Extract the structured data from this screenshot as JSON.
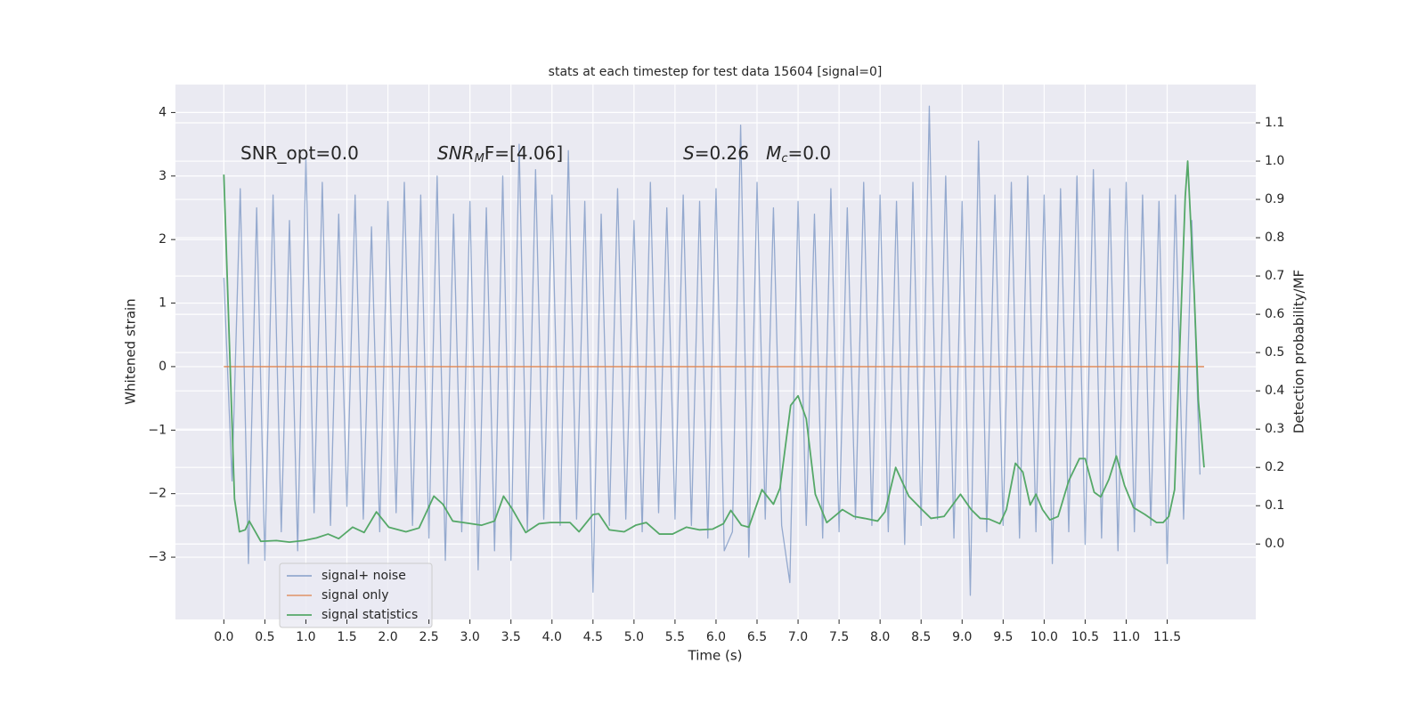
{
  "chart_data": {
    "type": "line",
    "title": "stats at each timestep for test data 15604 [signal=0]",
    "xlabel": "Time (s)",
    "ylabel": "Whitened strain",
    "y2label": "Detection probability/MF",
    "annotations": [
      {
        "parts": [
          "SNR_opt=0.0"
        ]
      },
      {
        "parts": [
          "SNR",
          "M",
          "F=[4.06]"
        ]
      },
      {
        "parts": [
          "S",
          "=0.26   ",
          "M",
          "c",
          "=0.0"
        ]
      }
    ],
    "xlim": [
      -0.59,
      12.58
    ],
    "ylim": [
      -3.98,
      4.44
    ],
    "y2lim": [
      -0.197,
      1.2
    ],
    "xticks": [
      {
        "value": 0,
        "label": "0.0"
      },
      0.5,
      {
        "value": 1,
        "label": "1.0"
      },
      1.5,
      {
        "value": 2,
        "label": "2.0"
      },
      2.5,
      {
        "value": 3,
        "label": "3.0"
      },
      3.5,
      {
        "value": 4,
        "label": "4.0"
      },
      4.5,
      {
        "value": 5,
        "label": "5.0"
      },
      5.5,
      {
        "value": 6,
        "label": "6.0"
      },
      6.5,
      {
        "value": 7,
        "label": "7.0"
      },
      7.5,
      {
        "value": 8,
        "label": "8.0"
      },
      8.5,
      {
        "value": 9,
        "label": "9.0"
      },
      9.5,
      {
        "value": 10,
        "label": "10.0"
      },
      10.5,
      {
        "value": 11,
        "label": "11.0"
      },
      11.5
    ],
    "yticks": [
      {
        "value": -3,
        "label": "−3"
      },
      {
        "value": -2,
        "label": "−2"
      },
      {
        "value": -1,
        "label": "−1"
      },
      0,
      1,
      2,
      3,
      4
    ],
    "y2ticks": [
      {
        "value": 0,
        "label": "0.0"
      },
      0.1,
      0.2,
      0.3,
      0.4,
      0.5,
      0.6,
      0.7,
      0.8,
      0.9,
      {
        "value": 1,
        "label": "1.0"
      },
      1.1
    ],
    "grid": true,
    "legend": "lower left",
    "series": [
      {
        "name": "signal+ noise",
        "color": "#4c72b0",
        "x": [
          0.0,
          0.1,
          0.2,
          0.3,
          0.4,
          0.5,
          0.6,
          0.7,
          0.8,
          0.9,
          1.0,
          1.1,
          1.2,
          1.3,
          1.4,
          1.5,
          1.6,
          1.7,
          1.8,
          1.9,
          2.0,
          2.1,
          2.2,
          2.3,
          2.4,
          2.5,
          2.6,
          2.7,
          2.8,
          2.9,
          3.0,
          3.1,
          3.2,
          3.3,
          3.4,
          3.5,
          3.6,
          3.7,
          3.8,
          3.9,
          4.0,
          4.1,
          4.2,
          4.3,
          4.4,
          4.5,
          4.6,
          4.7,
          4.8,
          4.9,
          5.0,
          5.1,
          5.2,
          5.3,
          5.4,
          5.5,
          5.6,
          5.7,
          5.8,
          5.9,
          6.0,
          6.1,
          6.2,
          6.3,
          6.4,
          6.5,
          6.6,
          6.7,
          6.8,
          6.9,
          7.0,
          7.1,
          7.2,
          7.3,
          7.4,
          7.5,
          7.6,
          7.7,
          7.8,
          7.9,
          8.0,
          8.1,
          8.2,
          8.3,
          8.4,
          8.5,
          8.6,
          8.7,
          8.8,
          8.9,
          9.0,
          9.1,
          9.2,
          9.3,
          9.4,
          9.5,
          9.6,
          9.7,
          9.8,
          9.9,
          10.0,
          10.1,
          10.2,
          10.3,
          10.4,
          10.5,
          10.6,
          10.7,
          10.8,
          10.9,
          11.0,
          11.1,
          11.2,
          11.3,
          11.4,
          11.5,
          11.6,
          11.7,
          11.8,
          11.9
        ],
        "values": [
          1.4,
          -1.8,
          2.8,
          -3.1,
          2.5,
          -3.05,
          2.7,
          -2.6,
          2.3,
          -2.9,
          3.3,
          -2.3,
          2.9,
          -2.5,
          2.4,
          -2.2,
          2.7,
          -2.4,
          2.2,
          -2.6,
          2.6,
          -2.3,
          2.9,
          -2.5,
          2.7,
          -2.7,
          3.0,
          -3.05,
          2.4,
          -2.6,
          2.6,
          -3.2,
          2.5,
          -2.9,
          3.0,
          -3.05,
          3.5,
          -2.6,
          3.1,
          -2.4,
          2.7,
          -2.5,
          3.4,
          -2.4,
          2.6,
          -3.55,
          2.4,
          -2.5,
          2.8,
          -2.4,
          2.3,
          -2.6,
          2.9,
          -2.3,
          2.5,
          -2.4,
          2.7,
          -2.5,
          2.6,
          -2.7,
          2.8,
          -2.9,
          -2.6,
          3.8,
          -3.0,
          2.9,
          -2.4,
          2.5,
          -2.5,
          -3.4,
          2.6,
          -2.5,
          2.4,
          -2.7,
          2.8,
          -2.6,
          2.5,
          -2.4,
          2.9,
          -2.5,
          2.7,
          -2.6,
          2.6,
          -2.8,
          2.9,
          -2.5,
          4.1,
          -2.4,
          3.0,
          -2.7,
          2.6,
          -3.6,
          3.55,
          -2.6,
          2.7,
          -2.5,
          2.9,
          -2.7,
          3.0,
          -2.6,
          2.7,
          -3.1,
          2.8,
          -2.6,
          3.0,
          -2.8,
          3.1,
          -2.7,
          2.8,
          -2.9,
          2.9,
          -2.6,
          2.7,
          -2.5,
          2.6,
          -3.1,
          2.7,
          -2.4,
          2.3,
          -1.7
        ]
      },
      {
        "name": "signal only",
        "color": "#dd8452",
        "x": [
          0.0,
          11.95
        ],
        "values": [
          0,
          0
        ]
      },
      {
        "name": "signal statistics",
        "color": "#55a868",
        "axis": "y2",
        "x": [
          0.0,
          0.13,
          0.19,
          0.26,
          0.31,
          0.45,
          0.64,
          0.8,
          0.97,
          1.13,
          1.27,
          1.4,
          1.57,
          1.71,
          1.86,
          2.01,
          2.22,
          2.38,
          2.56,
          2.67,
          2.79,
          2.92,
          3.14,
          3.3,
          3.41,
          3.52,
          3.68,
          3.84,
          3.98,
          4.22,
          4.33,
          4.5,
          4.57,
          4.7,
          4.88,
          5.02,
          5.15,
          5.31,
          5.47,
          5.64,
          5.8,
          5.96,
          6.09,
          6.18,
          6.31,
          6.4,
          6.56,
          6.7,
          6.78,
          6.91,
          7.0,
          7.1,
          7.21,
          7.35,
          7.48,
          7.54,
          7.68,
          7.81,
          7.97,
          8.06,
          8.19,
          8.35,
          8.51,
          8.62,
          8.78,
          8.98,
          9.11,
          9.22,
          9.33,
          9.46,
          9.54,
          9.65,
          9.74,
          9.83,
          9.9,
          9.98,
          10.07,
          10.17,
          10.3,
          10.43,
          10.5,
          10.61,
          10.69,
          10.79,
          10.88,
          10.98,
          11.09,
          11.23,
          11.37,
          11.45,
          11.52,
          11.59,
          11.63,
          11.72,
          11.75,
          11.83,
          11.88,
          11.95
        ],
        "values": [
          0.965,
          0.118,
          0.032,
          0.037,
          0.06,
          0.007,
          0.009,
          0.005,
          0.009,
          0.016,
          0.026,
          0.014,
          0.044,
          0.03,
          0.084,
          0.044,
          0.032,
          0.042,
          0.125,
          0.104,
          0.06,
          0.056,
          0.049,
          0.06,
          0.125,
          0.09,
          0.03,
          0.053,
          0.056,
          0.056,
          0.032,
          0.077,
          0.079,
          0.037,
          0.032,
          0.049,
          0.056,
          0.026,
          0.026,
          0.044,
          0.037,
          0.039,
          0.053,
          0.088,
          0.049,
          0.044,
          0.142,
          0.104,
          0.146,
          0.362,
          0.387,
          0.327,
          0.13,
          0.056,
          0.079,
          0.09,
          0.072,
          0.067,
          0.06,
          0.084,
          0.2,
          0.125,
          0.09,
          0.067,
          0.072,
          0.13,
          0.09,
          0.067,
          0.065,
          0.053,
          0.09,
          0.211,
          0.188,
          0.102,
          0.13,
          0.09,
          0.063,
          0.072,
          0.165,
          0.223,
          0.223,
          0.135,
          0.123,
          0.169,
          0.23,
          0.153,
          0.095,
          0.077,
          0.056,
          0.056,
          0.072,
          0.142,
          0.374,
          0.907,
          1.0,
          0.652,
          0.374,
          0.2
        ]
      }
    ]
  }
}
